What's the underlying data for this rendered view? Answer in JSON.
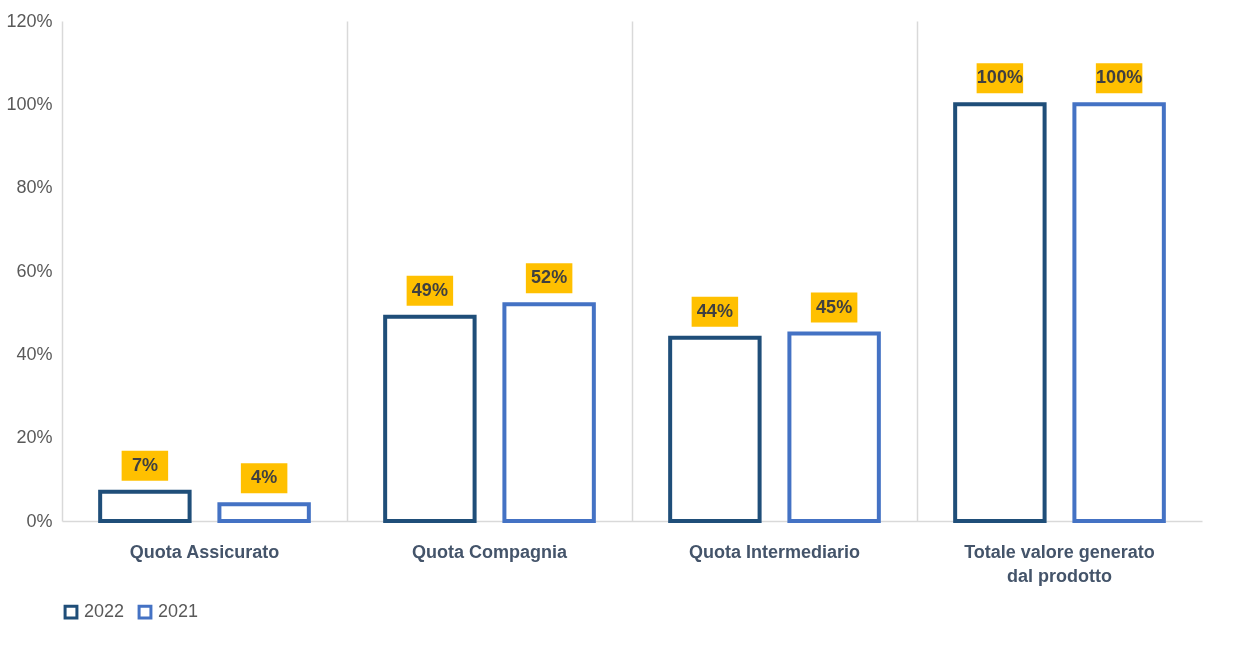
{
  "chart_data": {
    "type": "bar",
    "categories": [
      "Quota Assicurato",
      "Quota Compagnia",
      "Quota Intermediario",
      "Totale valore generato dal prodotto"
    ],
    "series": [
      {
        "name": "2022",
        "color": "#1f4e79",
        "values": [
          7,
          49,
          44,
          100
        ],
        "value_labels": [
          "7%",
          "49%",
          "44%",
          "100%"
        ]
      },
      {
        "name": "2021",
        "color": "#4472c4",
        "values": [
          4,
          52,
          45,
          100
        ],
        "value_labels": [
          "4%",
          "52%",
          "45%",
          "100%"
        ]
      }
    ],
    "ylim": [
      0,
      120
    ],
    "yticks": [
      {
        "value": 0,
        "label": "0%"
      },
      {
        "value": 20,
        "label": "20%"
      },
      {
        "value": 40,
        "label": "40%"
      },
      {
        "value": 60,
        "label": "60%"
      },
      {
        "value": 80,
        "label": "80%"
      },
      {
        "value": 100,
        "label": "100%"
      },
      {
        "value": 120,
        "label": "120%"
      }
    ],
    "grid": "x",
    "legend": "bottom"
  }
}
